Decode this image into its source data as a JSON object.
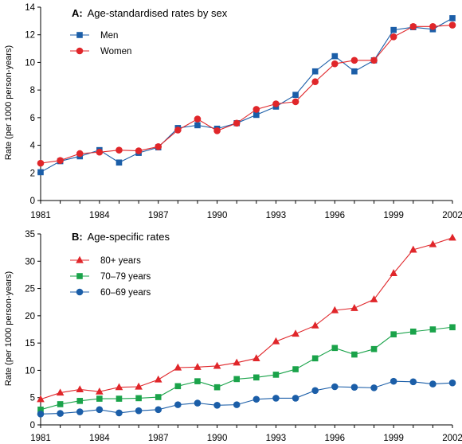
{
  "chart_data": [
    {
      "type": "line",
      "panel_letter": "A:",
      "title": "Age-standardised rates by sex",
      "ylabel": "Rate (per 1000 person-years)",
      "xlabel": "",
      "ylim": [
        0,
        14
      ],
      "yticks": [
        0,
        2,
        4,
        6,
        8,
        10,
        12,
        14
      ],
      "xticks": [
        1981,
        1984,
        1987,
        1990,
        1993,
        1996,
        1999,
        2002
      ],
      "x": [
        1981,
        1982,
        1983,
        1984,
        1985,
        1986,
        1987,
        1988,
        1989,
        1990,
        1991,
        1992,
        1993,
        1994,
        1995,
        1996,
        1997,
        1998,
        1999,
        2000,
        2001,
        2002
      ],
      "legend_position": "top-left",
      "grid": false,
      "series": [
        {
          "name": "Men",
          "color": "#1b5ea8",
          "marker": "square",
          "values": [
            2.05,
            2.85,
            3.2,
            3.65,
            2.75,
            3.45,
            3.85,
            5.25,
            5.45,
            5.2,
            5.6,
            6.2,
            6.8,
            7.65,
            9.35,
            10.45,
            9.35,
            10.15,
            12.35,
            12.55,
            12.4,
            13.2
          ]
        },
        {
          "name": "Women",
          "color": "#e0262a",
          "marker": "circle",
          "values": [
            2.7,
            2.9,
            3.4,
            3.5,
            3.65,
            3.6,
            3.9,
            5.1,
            5.9,
            5.05,
            5.6,
            6.6,
            7.0,
            7.15,
            8.6,
            9.9,
            10.15,
            10.15,
            11.85,
            12.6,
            12.6,
            12.7
          ]
        }
      ]
    },
    {
      "type": "line",
      "panel_letter": "B:",
      "title": "Age-specific rates",
      "ylabel": "Rate (per 1000 person-years)",
      "xlabel": "",
      "ylim": [
        0,
        35
      ],
      "yticks": [
        0,
        5,
        10,
        15,
        20,
        25,
        30,
        35
      ],
      "xticks": [
        1981,
        1984,
        1987,
        1990,
        1993,
        1996,
        1999,
        2002
      ],
      "x": [
        1981,
        1982,
        1983,
        1984,
        1985,
        1986,
        1987,
        1988,
        1989,
        1990,
        1991,
        1992,
        1993,
        1994,
        1995,
        1996,
        1997,
        1998,
        1999,
        2000,
        2001,
        2002
      ],
      "legend_position": "top-left",
      "grid": false,
      "series": [
        {
          "name": "80+ years",
          "color": "#e0262a",
          "marker": "triangle",
          "values": [
            4.7,
            5.9,
            6.5,
            6.1,
            6.9,
            7.0,
            8.3,
            10.5,
            10.6,
            10.8,
            11.4,
            12.2,
            15.3,
            16.7,
            18.2,
            21.0,
            21.4,
            23.0,
            27.8,
            32.1,
            33.1,
            34.3
          ]
        },
        {
          "name": "70–79 years",
          "color": "#1aa34a",
          "marker": "square",
          "values": [
            2.8,
            3.8,
            4.4,
            4.8,
            4.8,
            4.9,
            5.1,
            7.1,
            8.0,
            6.9,
            8.4,
            8.7,
            9.2,
            10.2,
            12.2,
            14.1,
            12.9,
            13.9,
            16.6,
            17.1,
            17.5,
            17.9
          ]
        },
        {
          "name": "60–69 years",
          "color": "#1b5ea8",
          "marker": "circle",
          "values": [
            2.0,
            2.1,
            2.4,
            2.8,
            2.2,
            2.6,
            2.8,
            3.7,
            4.0,
            3.6,
            3.7,
            4.7,
            4.9,
            4.9,
            6.3,
            7.0,
            6.9,
            6.8,
            8.0,
            7.9,
            7.5,
            7.7
          ]
        }
      ]
    }
  ]
}
